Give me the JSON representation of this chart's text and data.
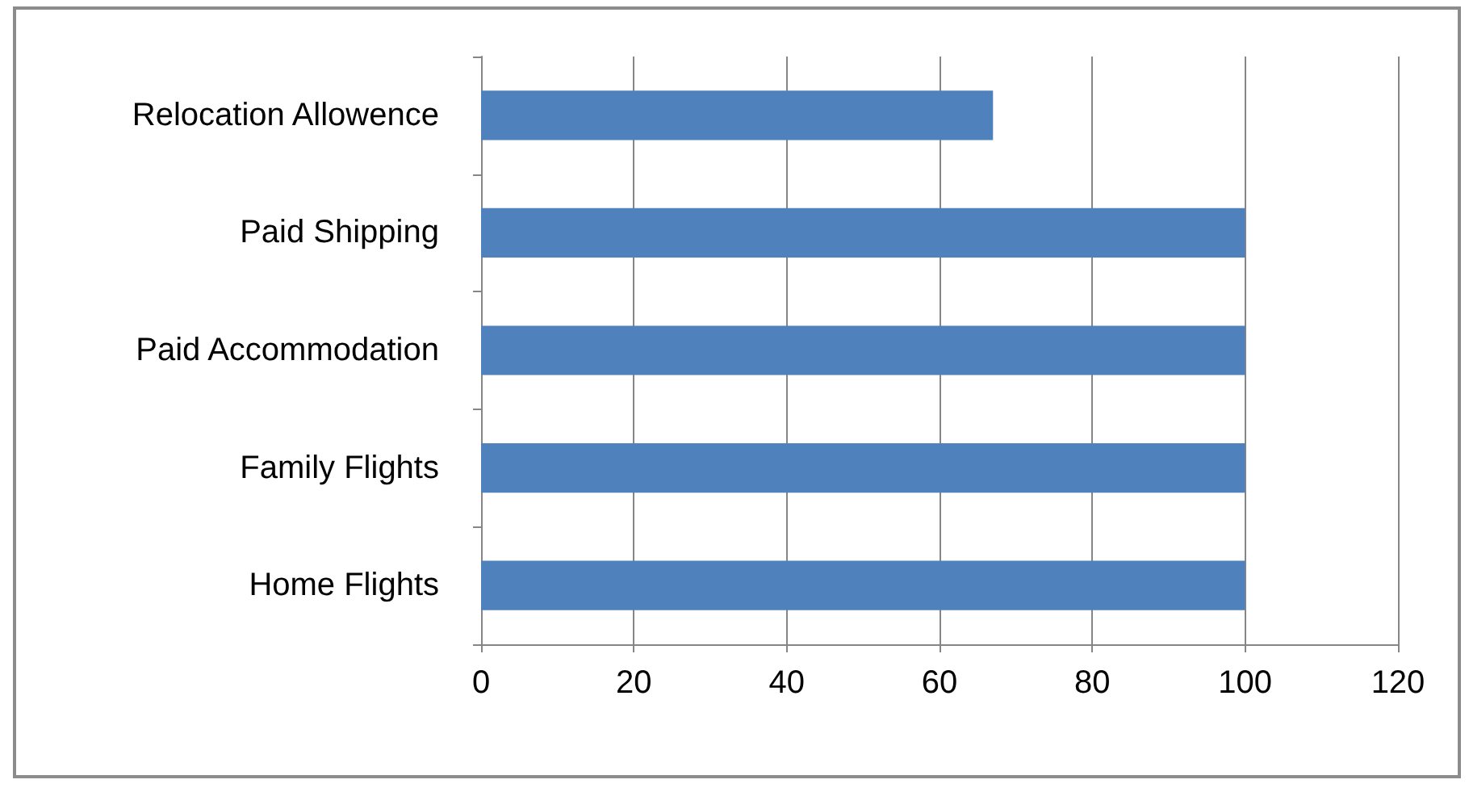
{
  "chart_data": {
    "type": "bar",
    "orientation": "horizontal",
    "categories": [
      "Relocation Allowence",
      "Paid Shipping",
      "Paid Accommodation",
      "Family Flights",
      "Home Flights"
    ],
    "values": [
      67,
      100,
      100,
      100,
      100
    ],
    "color": "#4f81bd",
    "xlim": [
      0,
      120
    ],
    "xticks": [
      0,
      20,
      40,
      60,
      80,
      100,
      120
    ],
    "grid": "x"
  }
}
